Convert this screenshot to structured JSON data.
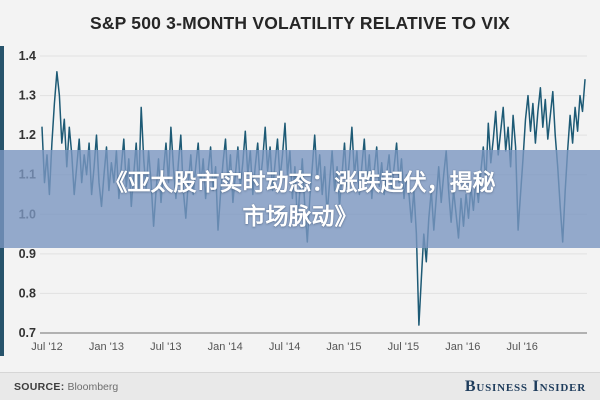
{
  "title": "S&P 500 3-MONTH VOLATILITY RELATIVE TO VIX",
  "overlay": {
    "line1": "《亚太股市实时动态：涨跌起伏，揭秘",
    "line2": "市场脉动》"
  },
  "footer": {
    "source_label": "SOURCE:",
    "source_value": "Bloomberg",
    "brand": "Business Insider"
  },
  "colors": {
    "background": "#f3f3f3",
    "line": "#1d5a75",
    "grid": "#e1e1e1",
    "axis": "#9b9b9b",
    "overlay": "rgba(122,150,193,0.8)",
    "brand_navy": "#1e3c5c",
    "title_text": "#262626"
  },
  "chart_data": {
    "type": "line",
    "title": "S&P 500 3-MONTH VOLATILITY RELATIVE TO VIX",
    "xlabel": "",
    "ylabel": "",
    "ylim": [
      0.7,
      1.4
    ],
    "grid": true,
    "legend_position": "none",
    "x_tick_labels": [
      "Jul '12",
      "Jan '13",
      "Jul '13",
      "Jan '14",
      "Jul '14",
      "Jan '15",
      "Jul '15",
      "Jan '16",
      "Jul '16"
    ],
    "y_tick_labels": [
      "1.4",
      "1.3",
      "1.2",
      "1.1",
      "1.0",
      "0.9",
      "0.8",
      "0.7"
    ],
    "y_tick_values": [
      1.4,
      1.3,
      1.2,
      1.1,
      1.0,
      0.9,
      0.8,
      0.7
    ],
    "series": [
      {
        "name": "S&P 500 3-month volatility relative to VIX",
        "values": [
          1.22,
          1.08,
          1.15,
          1.05,
          1.18,
          1.28,
          1.36,
          1.3,
          1.18,
          1.24,
          1.12,
          1.22,
          1.15,
          1.05,
          1.12,
          1.19,
          1.08,
          1.15,
          1.1,
          1.18,
          1.05,
          1.12,
          1.2,
          1.08,
          1.02,
          1.1,
          1.17,
          1.06,
          1.13,
          1.08,
          1.16,
          1.04,
          1.12,
          1.19,
          1.07,
          1.14,
          1.02,
          1.1,
          1.18,
          1.06,
          1.27,
          1.14,
          1.06,
          1.16,
          1.08,
          0.97,
          1.06,
          1.14,
          1.03,
          1.11,
          1.18,
          1.08,
          1.22,
          1.12,
          1.04,
          1.13,
          1.2,
          1.06,
          0.99,
          1.08,
          1.15,
          1.05,
          1.12,
          1.18,
          1.07,
          1.14,
          1.04,
          1.11,
          1.17,
          1.06,
          1.12,
          0.96,
          1.05,
          1.13,
          1.19,
          1.08,
          1.15,
          1.03,
          1.1,
          1.17,
          1.07,
          1.13,
          1.21,
          1.1,
          1.16,
          1.05,
          1.12,
          1.18,
          1.08,
          1.14,
          1.22,
          1.11,
          1.17,
          1.06,
          1.13,
          1.19,
          1.09,
          1.15,
          1.23,
          1.1,
          1.16,
          1.04,
          1.12,
          0.98,
          1.06,
          1.14,
          1.02,
          0.93,
          1.04,
          1.12,
          1.2,
          1.09,
          1.15,
          1.05,
          1.12,
          1.0,
          1.08,
          1.16,
          1.06,
          1.12,
          1.02,
          1.1,
          1.18,
          1.07,
          1.14,
          1.22,
          1.1,
          1.16,
          1.05,
          1.12,
          1.19,
          1.08,
          1.15,
          1.04,
          1.11,
          1.17,
          1.07,
          1.13,
          1.05,
          1.1,
          1.15,
          1.06,
          1.12,
          1.18,
          1.08,
          1.14,
          1.04,
          1.1,
          1.05,
          0.98,
          1.06,
          0.95,
          0.72,
          0.84,
          0.95,
          0.88,
          0.99,
          1.06,
          0.96,
          1.04,
          1.12,
          1.03,
          1.1,
          1.16,
          1.06,
          0.98,
          1.06,
          1.0,
          0.94,
          1.04,
          0.97,
          1.05,
          0.99,
          1.07,
          1.01,
          1.09,
          1.03,
          1.11,
          1.17,
          1.08,
          1.23,
          1.13,
          1.19,
          1.26,
          1.15,
          1.21,
          1.27,
          1.16,
          1.22,
          1.12,
          1.25,
          1.17,
          0.96,
          1.05,
          1.14,
          1.24,
          1.3,
          1.21,
          1.28,
          1.18,
          1.26,
          1.32,
          1.22,
          1.29,
          1.19,
          1.25,
          1.31,
          1.2,
          1.12,
          1.02,
          0.93,
          1.06,
          1.16,
          1.25,
          1.18,
          1.27,
          1.21,
          1.3,
          1.26,
          1.34
        ]
      }
    ]
  }
}
